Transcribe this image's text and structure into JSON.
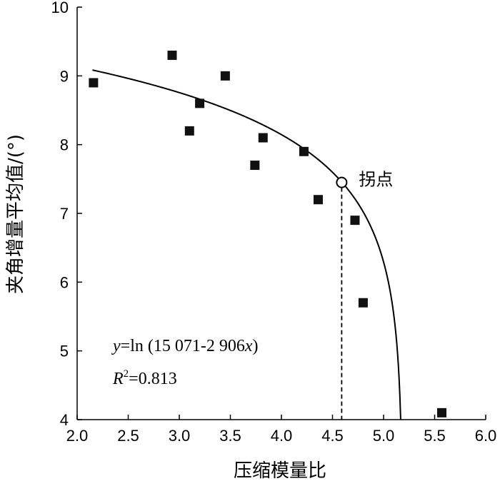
{
  "chart_data": {
    "type": "scatter",
    "xlabel": "压缩模量比",
    "ylabel": "夹角增量平均值/(°)",
    "xlim": [
      2.0,
      6.0
    ],
    "ylim": [
      4,
      10
    ],
    "x_ticks": [
      "2.0",
      "2.5",
      "3.0",
      "3.5",
      "4.0",
      "4.5",
      "5.0",
      "5.5",
      "6.0"
    ],
    "y_ticks": [
      "4",
      "5",
      "6",
      "7",
      "8",
      "9",
      "10"
    ],
    "series": [
      {
        "marker": "square",
        "color": "#111111",
        "points": [
          {
            "x": 2.16,
            "y": 8.9
          },
          {
            "x": 2.93,
            "y": 9.3
          },
          {
            "x": 3.1,
            "y": 8.2
          },
          {
            "x": 3.2,
            "y": 8.6
          },
          {
            "x": 3.45,
            "y": 9.0
          },
          {
            "x": 3.74,
            "y": 7.7
          },
          {
            "x": 3.82,
            "y": 8.1
          },
          {
            "x": 4.22,
            "y": 7.9
          },
          {
            "x": 4.36,
            "y": 7.2
          },
          {
            "x": 4.72,
            "y": 6.9
          },
          {
            "x": 4.8,
            "y": 5.7
          },
          {
            "x": 5.57,
            "y": 4.1
          }
        ]
      }
    ],
    "fit": {
      "equation_prefix": "y",
      "equation_body": "=ln (15 071-2 906",
      "equation_var": "x",
      "equation_suffix": ")",
      "r2_prefix": "R",
      "r2_sup": "2",
      "r2_value": "=0.813",
      "a": 15071,
      "b": 2906,
      "x_range": [
        2.15,
        5.16
      ]
    },
    "inflection": {
      "x": 4.59,
      "y": 7.45,
      "label": "拐点"
    }
  }
}
